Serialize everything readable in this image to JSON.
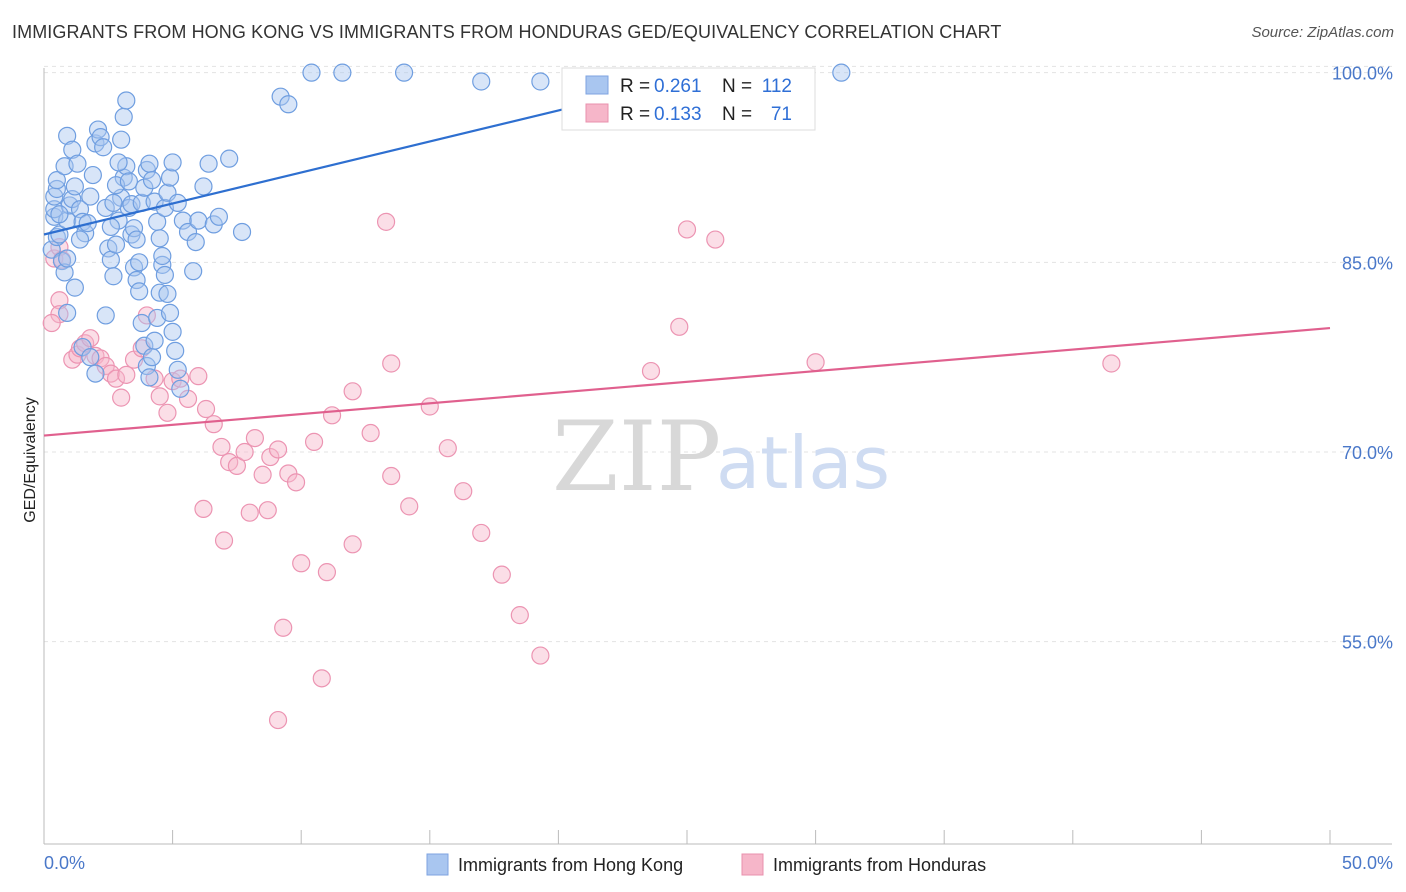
{
  "header": {
    "title": "IMMIGRANTS FROM HONG KONG VS IMMIGRANTS FROM HONDURAS GED/EQUIVALENCY CORRELATION CHART",
    "source": "Source: ZipAtlas.com"
  },
  "watermark": {
    "zip": "ZIP",
    "atlas": "atlas"
  },
  "stats": {
    "hk": {
      "r_label": "R =",
      "r_value": "0.261",
      "n_label": "N =",
      "n_value": "112"
    },
    "hn": {
      "r_label": "R =",
      "r_value": "0.133",
      "n_label": "N =",
      "n_value": "71"
    }
  },
  "colors": {
    "hk": "#a9c6f0",
    "hk_line": "#2e6fd0",
    "hn": "#f6b6c9",
    "hn_line": "#e0608e",
    "tick": "#4a78c9",
    "grid": "#e3e3e3"
  },
  "chart_data": {
    "type": "scatter",
    "title": "IMMIGRANTS FROM HONG KONG VS IMMIGRANTS FROM HONDURAS GED/EQUIVALENCY CORRELATION CHART",
    "xlabel": "",
    "ylabel": "GED/Equivalency",
    "xlim": [
      0,
      50
    ],
    "ylim": [
      39,
      101
    ],
    "x_tick_labels": [
      "0.0%",
      "50.0%"
    ],
    "y_ticks": [
      55,
      70,
      85,
      100
    ],
    "y_tick_labels": [
      "55.0%",
      "70.0%",
      "85.0%",
      "100.0%"
    ],
    "grid": true,
    "legend_position": "bottom",
    "series": [
      {
        "name": "Immigrants from Hong Kong",
        "color": "#a9c6f0",
        "trend": {
          "x": [
            0,
            26.5
          ],
          "y": [
            87.2,
            100.2
          ]
        },
        "points": [
          [
            0.3,
            86
          ],
          [
            0.5,
            87
          ],
          [
            0.4,
            88.6
          ],
          [
            0.4,
            89.2
          ],
          [
            0.4,
            90.2
          ],
          [
            0.5,
            90.8
          ],
          [
            0.5,
            91.5
          ],
          [
            0.8,
            92.6
          ],
          [
            0.9,
            95
          ],
          [
            1.1,
            93.9
          ],
          [
            0.6,
            87.2
          ],
          [
            0.7,
            85.1
          ],
          [
            0.8,
            84.2
          ],
          [
            0.9,
            85.3
          ],
          [
            0.9,
            88.3
          ],
          [
            1,
            89.5
          ],
          [
            1.1,
            90
          ],
          [
            1.2,
            91
          ],
          [
            1.3,
            92.8
          ],
          [
            1.4,
            89.2
          ],
          [
            1.5,
            88.2
          ],
          [
            1.6,
            87.3
          ],
          [
            1.7,
            88.1
          ],
          [
            1.8,
            90.2
          ],
          [
            1.9,
            91.9
          ],
          [
            2,
            94.4
          ],
          [
            2.1,
            95.5
          ],
          [
            2.2,
            94.9
          ],
          [
            2.3,
            94.1
          ],
          [
            2.4,
            89.3
          ],
          [
            2.5,
            86.1
          ],
          [
            2.6,
            85.2
          ],
          [
            2.7,
            83.9
          ],
          [
            2.8,
            86.4
          ],
          [
            2.9,
            88.3
          ],
          [
            3,
            90.1
          ],
          [
            3.1,
            91.7
          ],
          [
            3.2,
            92.6
          ],
          [
            3.3,
            89.3
          ],
          [
            3.4,
            87.2
          ],
          [
            3.5,
            84.6
          ],
          [
            3.6,
            83.6
          ],
          [
            3.7,
            82.7
          ],
          [
            3.8,
            80.2
          ],
          [
            3.9,
            78.4
          ],
          [
            4,
            76.8
          ],
          [
            4.1,
            75.9
          ],
          [
            4.2,
            77.5
          ],
          [
            4.3,
            78.8
          ],
          [
            4.4,
            80.6
          ],
          [
            4.5,
            82.6
          ],
          [
            4.6,
            84.8
          ],
          [
            2.6,
            87.8
          ],
          [
            2.7,
            89.7
          ],
          [
            2.8,
            91.1
          ],
          [
            2.9,
            92.9
          ],
          [
            3,
            94.7
          ],
          [
            3.1,
            96.5
          ],
          [
            3.2,
            97.8
          ],
          [
            1.5,
            78.3
          ],
          [
            1.8,
            77.5
          ],
          [
            2,
            76.2
          ],
          [
            0.9,
            81
          ],
          [
            1.2,
            83
          ],
          [
            3.3,
            91.4
          ],
          [
            3.4,
            89.6
          ],
          [
            3.5,
            87.7
          ],
          [
            3.6,
            86.8
          ],
          [
            3.7,
            85
          ],
          [
            3.8,
            89.7
          ],
          [
            3.9,
            90.9
          ],
          [
            4,
            92.3
          ],
          [
            4.1,
            92.8
          ],
          [
            4.2,
            91.5
          ],
          [
            4.3,
            89.8
          ],
          [
            4.4,
            88.2
          ],
          [
            4.5,
            86.9
          ],
          [
            4.6,
            85.5
          ],
          [
            4.7,
            84
          ],
          [
            4.8,
            82.5
          ],
          [
            4.9,
            81
          ],
          [
            5,
            79.5
          ],
          [
            5.1,
            78
          ],
          [
            5.2,
            76.5
          ],
          [
            5.3,
            75
          ],
          [
            4.7,
            89.3
          ],
          [
            4.8,
            90.5
          ],
          [
            4.9,
            91.7
          ],
          [
            5,
            92.9
          ],
          [
            5.2,
            89.7
          ],
          [
            5.4,
            88.3
          ],
          [
            5.6,
            87.4
          ],
          [
            5.8,
            84.3
          ],
          [
            5.9,
            86.6
          ],
          [
            6,
            88.3
          ],
          [
            6.2,
            91
          ],
          [
            6.4,
            92.8
          ],
          [
            6.6,
            88
          ],
          [
            6.8,
            88.6
          ],
          [
            7.2,
            93.2
          ],
          [
            7.7,
            87.4
          ],
          [
            9.2,
            98.1
          ],
          [
            9.5,
            97.5
          ],
          [
            10.4,
            100
          ],
          [
            11.6,
            100
          ],
          [
            14,
            100
          ],
          [
            17,
            99.3
          ],
          [
            19.3,
            99.3
          ],
          [
            31,
            100
          ],
          [
            1.4,
            86.8
          ],
          [
            2.4,
            80.8
          ],
          [
            0.6,
            88.8
          ]
        ]
      },
      {
        "name": "Immigrants from Honduras",
        "color": "#f6b6c9",
        "trend": {
          "x": [
            0,
            50
          ],
          "y": [
            71.3,
            79.8
          ]
        },
        "points": [
          [
            0.4,
            85.3
          ],
          [
            0.6,
            86.2
          ],
          [
            0.7,
            85.2
          ],
          [
            0.6,
            82
          ],
          [
            0.6,
            80.9
          ],
          [
            1.1,
            77.3
          ],
          [
            1.3,
            77.7
          ],
          [
            1.4,
            78.2
          ],
          [
            1.6,
            78.6
          ],
          [
            1.8,
            79
          ],
          [
            2,
            77.6
          ],
          [
            2.2,
            77.4
          ],
          [
            2.4,
            76.8
          ],
          [
            2.6,
            76.2
          ],
          [
            2.8,
            75.8
          ],
          [
            3,
            74.3
          ],
          [
            3.2,
            76.1
          ],
          [
            3.5,
            77.3
          ],
          [
            3.8,
            78.2
          ],
          [
            4,
            80.8
          ],
          [
            4.3,
            75.8
          ],
          [
            4.5,
            74.4
          ],
          [
            4.8,
            73.1
          ],
          [
            5,
            75.6
          ],
          [
            5.3,
            75.8
          ],
          [
            5.6,
            74.2
          ],
          [
            6,
            76
          ],
          [
            6.3,
            73.4
          ],
          [
            6.6,
            72.2
          ],
          [
            6.9,
            70.4
          ],
          [
            7.2,
            69.2
          ],
          [
            7.5,
            68.9
          ],
          [
            7.8,
            70
          ],
          [
            8.2,
            71.1
          ],
          [
            8.5,
            68.2
          ],
          [
            8.8,
            69.6
          ],
          [
            9.1,
            70.2
          ],
          [
            9.5,
            68.3
          ],
          [
            9.8,
            67.6
          ],
          [
            6.2,
            65.5
          ],
          [
            7,
            63
          ],
          [
            8,
            65.2
          ],
          [
            8.7,
            65.4
          ],
          [
            10.5,
            70.8
          ],
          [
            11.2,
            72.9
          ],
          [
            12,
            74.8
          ],
          [
            12.7,
            71.5
          ],
          [
            13.5,
            68.1
          ],
          [
            14.2,
            65.7
          ],
          [
            15,
            73.6
          ],
          [
            15.7,
            70.3
          ],
          [
            16.3,
            66.9
          ],
          [
            17,
            63.6
          ],
          [
            17.8,
            60.3
          ],
          [
            18.5,
            57.1
          ],
          [
            19.3,
            53.9
          ],
          [
            10,
            61.2
          ],
          [
            11,
            60.5
          ],
          [
            12,
            62.7
          ],
          [
            9.3,
            56.1
          ],
          [
            10.8,
            52.1
          ],
          [
            9.1,
            48.8
          ],
          [
            13.3,
            88.2
          ],
          [
            13.5,
            77
          ],
          [
            25,
            87.6
          ],
          [
            26.1,
            86.8
          ],
          [
            23.6,
            76.4
          ],
          [
            24.7,
            79.9
          ],
          [
            30,
            77.1
          ],
          [
            41.5,
            77
          ],
          [
            0.3,
            80.2
          ]
        ]
      }
    ]
  },
  "legend": {
    "items": [
      {
        "label": "Immigrants from Hong Kong",
        "color": "#a9c6f0",
        "border": "#7ea3e0"
      },
      {
        "label": "Immigrants from Honduras",
        "color": "#f6b6c9",
        "border": "#e890ad"
      }
    ]
  }
}
